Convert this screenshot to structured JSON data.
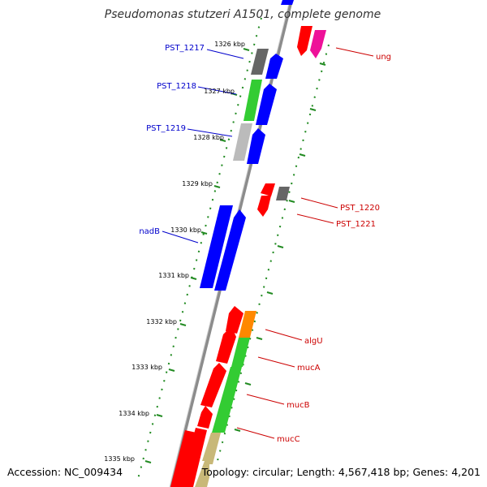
{
  "title": "Pseudomonas stutzeri A1501, complete genome",
  "footer": {
    "accession": "Accession: NC_009434",
    "summary": "Topology: circular; Length: 4,567,418 bp; Genes: 4,201"
  },
  "colors": {
    "backbone": "#8c8c8c",
    "tick_mark": "#228b22",
    "forward_label": "#0000cc",
    "reverse_label": "#cc0000",
    "blue": "#0000ff",
    "red": "#ff0000",
    "green": "#33cc33",
    "gray": "#666666",
    "light_gray": "#bbbbbb",
    "magenta": "#ee1199",
    "orange": "#ff8800",
    "tan": "#c8b878"
  },
  "scale_labels": [
    "1326 kbp",
    "1327 kbp",
    "1328 kbp",
    "1329 kbp",
    "1330 kbp",
    "1331 kbp",
    "1332 kbp",
    "1333 kbp",
    "1334 kbp",
    "1335 kbp"
  ],
  "forward_gene_labels": [
    "PST_1217",
    "PST_1218",
    "PST_1219",
    "nadB"
  ],
  "reverse_gene_labels": [
    "ung",
    "PST_1220",
    "PST_1221",
    "algU",
    "mucA",
    "mucB",
    "mucC"
  ]
}
